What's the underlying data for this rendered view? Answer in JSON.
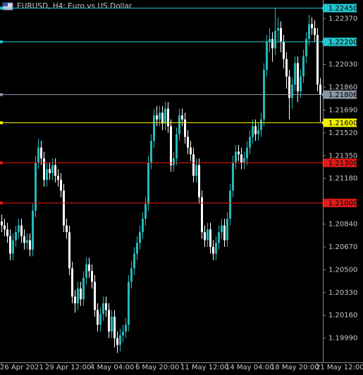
{
  "chart_data": {
    "type": "candlestick",
    "title": "EURUSD, H4:  Euro vs US Dollar",
    "categories": [
      "26 Apr 2021",
      null,
      null,
      null,
      null,
      null,
      null,
      null,
      null,
      null,
      null,
      null,
      null,
      null,
      null,
      null,
      "29 Apr 12:00",
      null,
      null,
      null,
      null,
      null,
      null,
      null,
      null,
      null,
      null,
      null,
      null,
      null,
      null,
      null,
      "4 May 04:00",
      null,
      null,
      null,
      null,
      null,
      null,
      null,
      null,
      null,
      null,
      null,
      null,
      null,
      null,
      null,
      "6 May 20:00",
      null,
      null,
      null,
      null,
      null,
      null,
      null,
      null,
      null,
      null,
      null,
      null,
      null,
      null,
      null,
      "11 May 12:00",
      null,
      null,
      null,
      null,
      null,
      null,
      null,
      null,
      null,
      null,
      null,
      null,
      null,
      null,
      null,
      "14 May 04:00",
      null,
      null,
      null,
      null,
      null,
      null,
      null,
      null,
      null,
      null,
      null,
      null,
      null,
      null,
      null,
      "18 May 20:00",
      null,
      null,
      null,
      null,
      null,
      null,
      null,
      null,
      null,
      null,
      null,
      null,
      null,
      null,
      null,
      "21 May 12:00",
      null
    ],
    "open": [
      1.2086,
      1.2083,
      1.208,
      1.2075,
      1.2062,
      1.2072,
      1.2078,
      1.2083,
      1.2075,
      1.207,
      1.2072,
      1.2065,
      1.2094,
      1.213,
      1.2141,
      1.2133,
      1.2117,
      1.2125,
      1.2122,
      1.2128,
      1.212,
      1.2117,
      1.2109,
      1.2083,
      1.2078,
      1.2051,
      1.203,
      1.2025,
      1.2036,
      1.2028,
      1.2044,
      1.2054,
      1.2049,
      1.2041,
      1.202,
      1.2009,
      1.2017,
      1.2025,
      1.202,
      1.2004,
      1.2015,
      1.1999,
      1.1994,
      1.2001,
      1.2004,
      1.2009,
      1.2041,
      1.2051,
      1.2062,
      1.207,
      1.2078,
      1.2088,
      1.2099,
      1.213,
      1.2146,
      1.2165,
      1.2162,
      1.2167,
      1.2159,
      1.217,
      1.2157,
      1.2128,
      1.2133,
      1.2151,
      1.2165,
      1.2162,
      1.2149,
      1.2141,
      1.2136,
      1.212,
      1.2128,
      1.2104,
      1.2078,
      1.2072,
      1.208,
      1.2067,
      1.2062,
      1.207,
      1.2078,
      1.2083,
      1.2072,
      1.2088,
      1.2109,
      1.213,
      1.2138,
      1.2136,
      1.213,
      1.2133,
      1.2141,
      1.2149,
      1.2157,
      1.2151,
      1.2154,
      1.2162,
      1.2199,
      1.222,
      1.2222,
      1.2215,
      1.2228,
      1.223,
      1.222,
      1.2207,
      1.2194,
      1.2178,
      1.2188,
      1.2204,
      1.2183,
      1.2194,
      1.2209,
      1.2222,
      1.2233,
      1.223,
      1.2225,
      1.2188
    ],
    "high": [
      1.2091,
      1.2088,
      1.2085,
      1.208,
      1.2077,
      1.2083,
      1.2088,
      1.2088,
      1.208,
      1.2077,
      1.2077,
      1.2099,
      1.2135,
      1.2148,
      1.2146,
      1.2138,
      1.213,
      1.213,
      1.2133,
      1.2133,
      1.2125,
      1.2122,
      1.2114,
      1.2088,
      1.2083,
      1.2056,
      1.2035,
      1.2041,
      1.2041,
      1.2049,
      1.2059,
      1.2059,
      1.2054,
      1.2046,
      1.2025,
      1.2022,
      1.203,
      1.203,
      1.2025,
      1.202,
      1.202,
      1.2004,
      1.2006,
      1.2009,
      1.2014,
      1.2046,
      1.2056,
      1.2067,
      1.2075,
      1.2083,
      1.2093,
      1.2104,
      1.2135,
      1.2151,
      1.217,
      1.2172,
      1.2172,
      1.2172,
      1.2175,
      1.2175,
      1.2162,
      1.2138,
      1.2156,
      1.217,
      1.217,
      1.2167,
      1.2154,
      1.2146,
      1.2141,
      1.2133,
      1.2133,
      1.2109,
      1.2083,
      1.2085,
      1.2085,
      1.2072,
      1.2075,
      1.2083,
      1.2088,
      1.2088,
      1.2093,
      1.2114,
      1.2135,
      1.2143,
      1.2143,
      1.2141,
      1.2138,
      1.2146,
      1.2154,
      1.2162,
      1.2162,
      1.2159,
      1.2167,
      1.2204,
      1.2225,
      1.223,
      1.2227,
      1.2245,
      1.2238,
      1.2235,
      1.2225,
      1.2212,
      1.2199,
      1.2193,
      1.2209,
      1.2209,
      1.2199,
      1.2214,
      1.2227,
      1.224,
      1.2238,
      1.2236,
      1.223,
      1.2193
    ],
    "low": [
      1.2078,
      1.2075,
      1.207,
      1.2057,
      1.2057,
      1.2067,
      1.2073,
      1.207,
      1.2065,
      1.2065,
      1.206,
      1.206,
      1.2089,
      1.2125,
      1.2128,
      1.2112,
      1.2112,
      1.2117,
      1.2117,
      1.2115,
      1.2112,
      1.2104,
      1.2078,
      1.2073,
      1.2046,
      1.2025,
      1.2018,
      1.202,
      1.2023,
      1.2023,
      1.2039,
      1.2044,
      1.2036,
      1.2015,
      1.2004,
      1.2004,
      1.2012,
      1.2015,
      1.1999,
      1.1999,
      1.1992,
      1.1988,
      1.1989,
      1.1996,
      1.1999,
      1.2004,
      1.2036,
      1.2046,
      1.2057,
      1.2065,
      1.2073,
      1.2083,
      1.2094,
      1.2125,
      1.2141,
      1.2157,
      1.2157,
      1.2154,
      1.2154,
      1.2152,
      1.2123,
      1.2123,
      1.2128,
      1.2146,
      1.2157,
      1.2144,
      1.2136,
      1.2131,
      1.2115,
      1.2115,
      1.2099,
      1.2073,
      1.2067,
      1.2067,
      1.2062,
      1.2057,
      1.2057,
      1.2065,
      1.2073,
      1.2067,
      1.2067,
      1.2083,
      1.2104,
      1.2125,
      1.2131,
      1.2125,
      1.2125,
      1.2128,
      1.2136,
      1.2144,
      1.2146,
      1.2146,
      1.2149,
      1.2157,
      1.2194,
      1.2212,
      1.2205,
      1.221,
      1.222,
      1.2212,
      1.22,
      1.2185,
      1.2162,
      1.217,
      1.2183,
      1.2175,
      1.2178,
      1.2189,
      1.2204,
      1.2217,
      1.2225,
      1.222,
      1.2183,
      1.216
    ],
    "close": [
      1.2083,
      1.208,
      1.2075,
      1.2062,
      1.2072,
      1.2078,
      1.2083,
      1.2075,
      1.207,
      1.2072,
      1.2065,
      1.2094,
      1.213,
      1.2141,
      1.2133,
      1.2117,
      1.2125,
      1.2122,
      1.2128,
      1.212,
      1.2117,
      1.2109,
      1.2083,
      1.2078,
      1.2051,
      1.203,
      1.2025,
      1.2036,
      1.2028,
      1.2044,
      1.2054,
      1.2049,
      1.2041,
      1.202,
      1.2009,
      1.2017,
      1.2025,
      1.202,
      1.2004,
      1.2015,
      1.1999,
      1.1994,
      1.2001,
      1.2004,
      1.2009,
      1.2041,
      1.2051,
      1.2062,
      1.207,
      1.2078,
      1.2088,
      1.2099,
      1.213,
      1.2146,
      1.2165,
      1.2162,
      1.2167,
      1.2159,
      1.217,
      1.2157,
      1.2128,
      1.2133,
      1.2151,
      1.2165,
      1.2162,
      1.2149,
      1.2141,
      1.2136,
      1.212,
      1.2128,
      1.2104,
      1.2078,
      1.2072,
      1.208,
      1.2067,
      1.2062,
      1.207,
      1.2078,
      1.2083,
      1.2072,
      1.2088,
      1.2109,
      1.213,
      1.2138,
      1.2136,
      1.213,
      1.2133,
      1.2141,
      1.2149,
      1.2157,
      1.2151,
      1.2154,
      1.2162,
      1.2199,
      1.222,
      1.2222,
      1.2215,
      1.2228,
      1.223,
      1.222,
      1.2207,
      1.2194,
      1.2178,
      1.2188,
      1.2204,
      1.2183,
      1.2194,
      1.2209,
      1.2222,
      1.2233,
      1.223,
      1.2225,
      1.2188,
      1.21806
    ],
    "up_color": "#26b8b8",
    "down_color": "#ffffff",
    "ylim": [
      1.1981,
      1.2251
    ],
    "yticks": [
      {
        "value": 1.2237,
        "label": "1.22370"
      },
      {
        "value": 1.2203,
        "label": "1.22030"
      },
      {
        "value": 1.2186,
        "label": "1.21860"
      },
      {
        "value": 1.2169,
        "label": "1.21690"
      },
      {
        "value": 1.2152,
        "label": "1.21520"
      },
      {
        "value": 1.2135,
        "label": "1.21350"
      },
      {
        "value": 1.2118,
        "label": "1.21180"
      },
      {
        "value": 1.2084,
        "label": "1.20840"
      },
      {
        "value": 1.2067,
        "label": "1.20670"
      },
      {
        "value": 1.205,
        "label": "1.20500"
      },
      {
        "value": 1.2033,
        "label": "1.20330"
      },
      {
        "value": 1.2016,
        "label": "1.20160"
      },
      {
        "value": 1.1999,
        "label": "1.19990"
      }
    ],
    "levels": [
      {
        "value": 1.2245,
        "label": "1.22450",
        "color": "#22c5cc"
      },
      {
        "value": 1.222,
        "label": "1.22200",
        "color": "#22c5cc"
      },
      {
        "value": 1.21806,
        "label": "1.21806",
        "color": "#8a97a5"
      },
      {
        "value": 1.216,
        "label": "1.21600",
        "color": "#f2f200"
      },
      {
        "value": 1.213,
        "label": "1.21300",
        "color": "#e41b1b"
      },
      {
        "value": 1.21,
        "label": "1.21000",
        "color": "#e41b1b"
      }
    ]
  }
}
